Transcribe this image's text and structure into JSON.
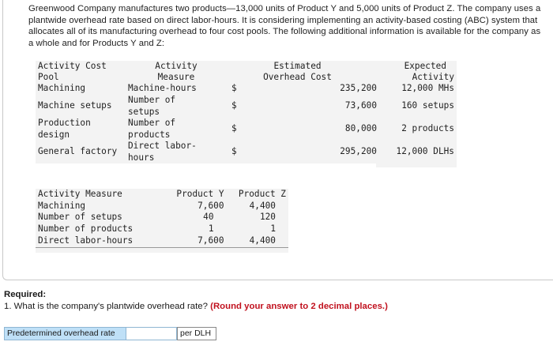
{
  "intro": "Greenwood Company manufactures two products—13,000 units of Product Y and 5,000 units of Product Z. The company uses a plantwide overhead rate based on direct labor-hours. It is considering implementing an activity-based costing (ABC) system that allocates all of its manufacturing overhead to four cost pools. The following additional information is available for the company as a whole and for Products Y and Z:",
  "pools": {
    "headers": {
      "pool": [
        "Activity Cost",
        "Pool"
      ],
      "measure": [
        "Activity",
        "Measure"
      ],
      "cost": [
        "Estimated",
        "Overhead Cost"
      ],
      "activity": [
        "Expected",
        "Activity"
      ]
    },
    "rows": [
      {
        "pool": [
          "Machining"
        ],
        "measure": [
          "Machine-hours"
        ],
        "dollar": "$",
        "cost": "235,200",
        "activity": "12,000 MHs"
      },
      {
        "pool": [
          "Machine setups"
        ],
        "measure": [
          "Number of",
          "setups"
        ],
        "dollar": "$",
        "cost": "73,600",
        "activity": "160 setups"
      },
      {
        "pool": [
          "Production",
          "design"
        ],
        "measure": [
          "Number of",
          "products"
        ],
        "dollar": "$",
        "cost": "80,000",
        "activity": "2 products"
      },
      {
        "pool": [
          "General factory"
        ],
        "measure": [
          "Direct labor-",
          "hours"
        ],
        "dollar": "$",
        "cost": "295,200",
        "activity": "12,000 DLHs"
      }
    ]
  },
  "usage": {
    "headers": {
      "measure": "Activity Measure",
      "y": "Product Y",
      "z": "Product Z"
    },
    "rows": [
      {
        "measure": "Machining",
        "y": "7,600",
        "z": "4,400"
      },
      {
        "measure": "Number of setups",
        "y": "40",
        "z": "120"
      },
      {
        "measure": "Number of products",
        "y": "1",
        "z": "1"
      },
      {
        "measure": "Direct labor-hours",
        "y": "7,600",
        "z": "4,400"
      }
    ]
  },
  "question": {
    "required": "Required:",
    "text": "1. What is the company's plantwide overhead rate?",
    "hint": "(Round your answer to 2 decimal places.)"
  },
  "answer": {
    "label": "Predetermined overhead rate",
    "value": "",
    "unit": "per DLH"
  }
}
